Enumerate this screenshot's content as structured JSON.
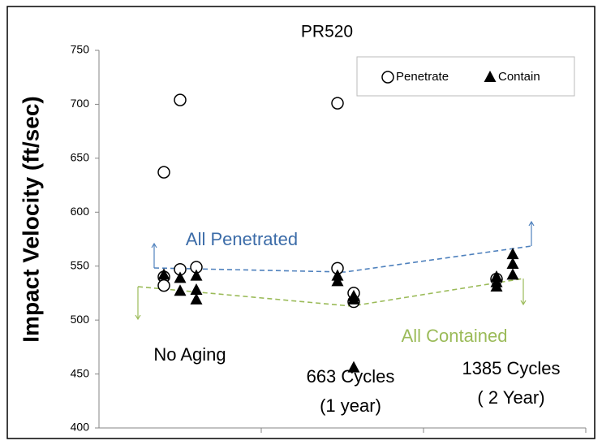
{
  "chart_data": {
    "type": "scatter",
    "title": "PR520",
    "y_label": "Impact Velocity (ft/sec)",
    "xlim": [
      0,
      3
    ],
    "ylim": [
      400,
      750
    ],
    "yticks": [
      400,
      450,
      500,
      550,
      600,
      650,
      700,
      750
    ],
    "legend": "top-right",
    "series": [
      {
        "name": "Penetrate",
        "marker": "circle",
        "color": "#000000",
        "x": [
          0.4,
          0.5,
          0.4,
          0.4,
          0.5,
          0.6,
          1.47,
          1.47,
          1.57,
          1.57,
          2.45
        ],
        "values": [
          637,
          704,
          540,
          532,
          547,
          549,
          701,
          548,
          525,
          517,
          538
        ]
      },
      {
        "name": "Contain",
        "marker": "triangle",
        "color": "#000000",
        "x": [
          0.4,
          0.5,
          0.5,
          0.6,
          0.6,
          0.6,
          1.47,
          1.47,
          1.57,
          1.57,
          1.57,
          2.45,
          2.45,
          2.45,
          2.55,
          2.55,
          2.55
        ],
        "values": [
          542,
          539,
          527,
          541,
          528,
          519,
          541,
          536,
          522,
          519,
          456,
          540,
          531,
          535,
          542,
          552,
          561
        ]
      }
    ],
    "group_labels": [
      [
        "No Aging"
      ],
      [
        "663 Cycles",
        "(1 year)"
      ],
      [
        "1385 Cycles",
        "( 2 Year)"
      ]
    ],
    "annotations": [
      {
        "text": "All Penetrated",
        "color": "#3c6ca8"
      },
      {
        "text": "All Contained",
        "color": "#9bbb59"
      }
    ]
  }
}
